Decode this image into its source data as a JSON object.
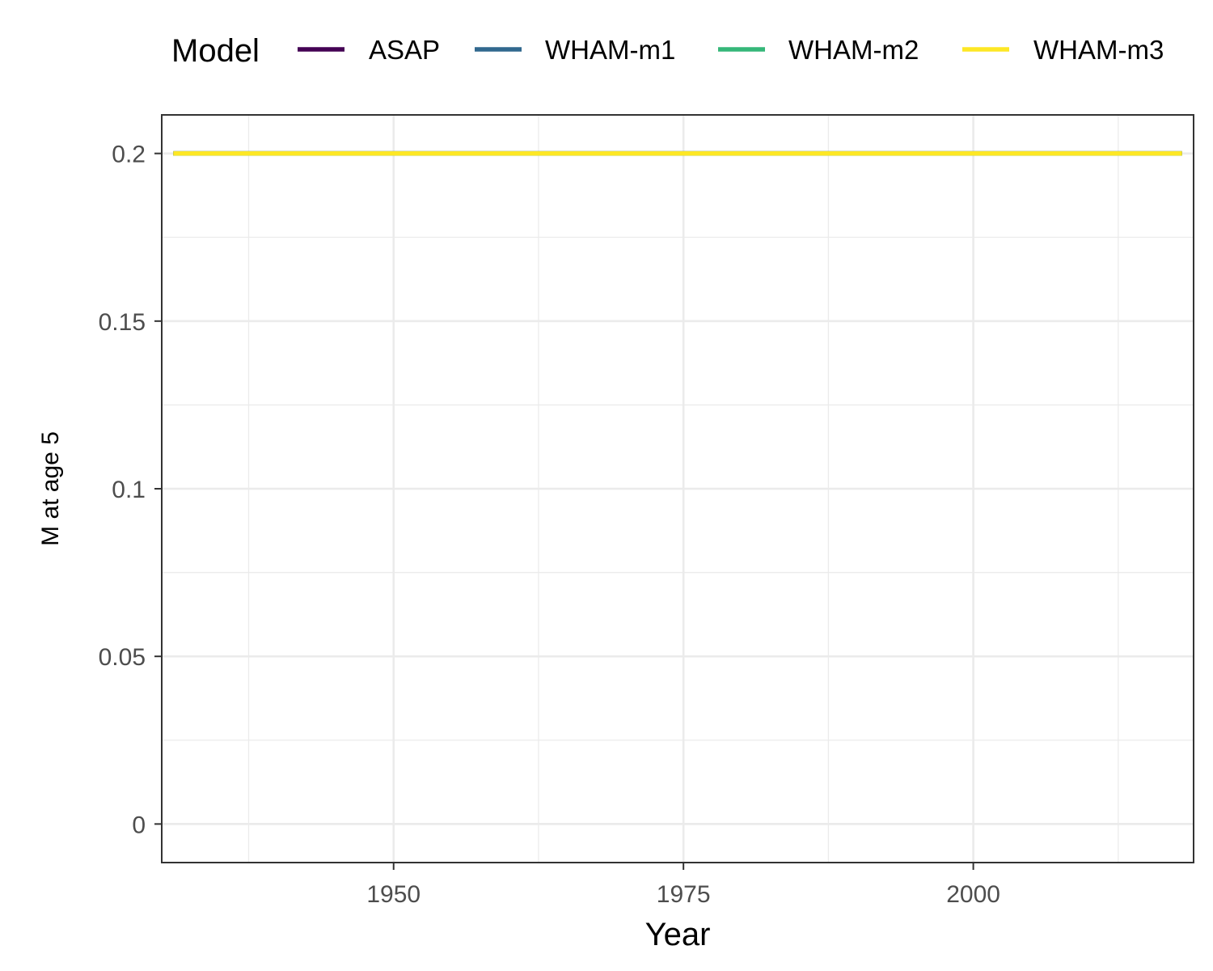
{
  "chart_data": {
    "type": "line",
    "xlabel": "Year",
    "ylabel": "M at age 5",
    "xlim": [
      1930,
      2019
    ],
    "ylim": [
      -0.0115,
      0.2115
    ],
    "x_ticks": [
      1950,
      1975,
      2000
    ],
    "x_tick_labels": [
      "1950",
      "1975",
      "2000"
    ],
    "x_minor_ticks": [
      1937.5,
      1962.5,
      1987.5,
      2012.5
    ],
    "y_ticks": [
      0,
      0.05,
      0.1,
      0.15,
      0.2
    ],
    "y_tick_labels": [
      "0",
      "0.05",
      "0.1",
      "0.15",
      "0.2"
    ],
    "y_minor_ticks": [
      0.025,
      0.075,
      0.125,
      0.175
    ],
    "grid": true,
    "legend": {
      "title": "Model",
      "placement": "top"
    },
    "series": [
      {
        "name": "ASAP",
        "color": "#440154",
        "x": [
          1931,
          2018
        ],
        "y": [
          0.2,
          0.2
        ]
      },
      {
        "name": "WHAM-m1",
        "color": "#31688E",
        "x": [
          1931,
          2018
        ],
        "y": [
          0.2,
          0.2
        ]
      },
      {
        "name": "WHAM-m2",
        "color": "#35B779",
        "x": [
          1931,
          2018
        ],
        "y": [
          0.2,
          0.2
        ]
      },
      {
        "name": "WHAM-m3",
        "color": "#FDE725",
        "x": [
          1931,
          2018
        ],
        "y": [
          0.2,
          0.2
        ]
      }
    ]
  }
}
